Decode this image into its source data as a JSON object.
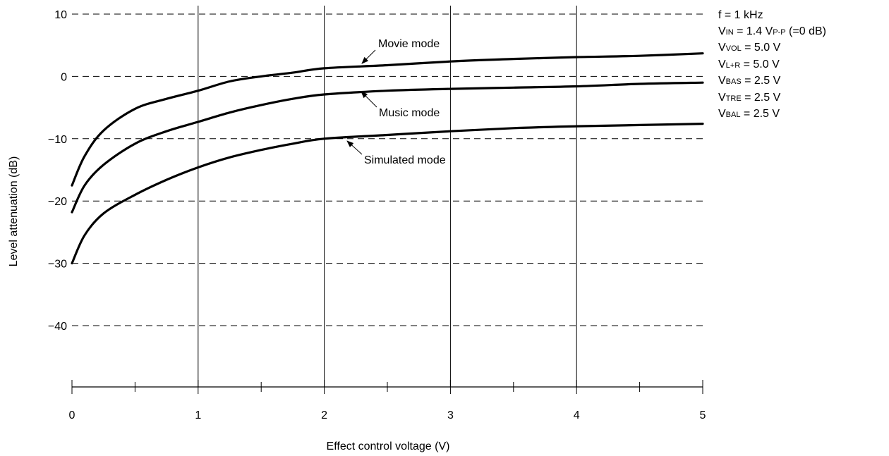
{
  "chart_data": {
    "type": "line",
    "xlabel": "Effect control voltage (V)",
    "ylabel": "Level attenuation (dB)",
    "xlim": [
      0,
      5
    ],
    "ylim": [
      -50,
      10
    ],
    "x_ticks": [
      "0",
      "1",
      "2",
      "3",
      "4",
      "5"
    ],
    "y_ticks": [
      "10",
      "0",
      "−10",
      "−20",
      "−30",
      "−40"
    ],
    "grid": {
      "x": "solid",
      "y": "dashed"
    },
    "series": [
      {
        "name": "Movie mode",
        "x": [
          0,
          0.1,
          0.25,
          0.5,
          0.75,
          1,
          1.25,
          1.5,
          1.75,
          2,
          2.5,
          3,
          3.5,
          4,
          4.5,
          5
        ],
        "y": [
          -17.5,
          -12.8,
          -8.7,
          -5.2,
          -3.6,
          -2.3,
          -0.8,
          0,
          0.6,
          1.3,
          1.8,
          2.4,
          2.8,
          3.1,
          3.3,
          3.7
        ]
      },
      {
        "name": "Music mode",
        "x": [
          0,
          0.1,
          0.25,
          0.5,
          0.75,
          1,
          1.25,
          1.5,
          1.75,
          2,
          2.5,
          3,
          3.5,
          4,
          4.5,
          5
        ],
        "y": [
          -21.8,
          -17.5,
          -14.2,
          -10.8,
          -8.8,
          -7.3,
          -5.8,
          -4.6,
          -3.6,
          -2.9,
          -2.3,
          -2.0,
          -1.8,
          -1.6,
          -1.2,
          -1.0
        ]
      },
      {
        "name": "Simulated mode",
        "x": [
          0,
          0.1,
          0.25,
          0.5,
          0.75,
          1,
          1.25,
          1.5,
          1.75,
          2,
          2.5,
          3,
          3.5,
          4,
          4.5,
          5
        ],
        "y": [
          -30,
          -25.5,
          -22.0,
          -19.0,
          -16.6,
          -14.6,
          -13.0,
          -11.8,
          -10.8,
          -10.0,
          -9.4,
          -8.8,
          -8.3,
          -8.0,
          -7.8,
          -7.6
        ]
      }
    ],
    "annotations": [
      {
        "text": "Movie mode",
        "series": "Movie mode"
      },
      {
        "text": "Music mode",
        "series": "Music mode"
      },
      {
        "text": "Simulated mode",
        "series": "Simulated mode"
      }
    ]
  },
  "conditions": [
    {
      "id": "f",
      "parts": [
        [
          "f = 1 kHz",
          false
        ]
      ]
    },
    {
      "id": "vin",
      "parts": [
        [
          "V",
          false
        ],
        [
          "IN",
          true
        ],
        [
          " = 1.4 V",
          false
        ],
        [
          "P-P",
          true
        ],
        [
          " (=0 dB)",
          false
        ]
      ]
    },
    {
      "id": "vvol",
      "parts": [
        [
          "V",
          false
        ],
        [
          "VOL",
          true
        ],
        [
          " = 5.0 V",
          false
        ]
      ]
    },
    {
      "id": "vlr",
      "parts": [
        [
          "V",
          false
        ],
        [
          "L+R",
          true
        ],
        [
          " = 5.0 V",
          false
        ]
      ]
    },
    {
      "id": "vbas",
      "parts": [
        [
          "V",
          false
        ],
        [
          "BAS",
          true
        ],
        [
          " = 2.5 V",
          false
        ]
      ]
    },
    {
      "id": "vtre",
      "parts": [
        [
          "V",
          false
        ],
        [
          "TRE",
          true
        ],
        [
          " = 2.5 V",
          false
        ]
      ]
    },
    {
      "id": "vbal",
      "parts": [
        [
          "V",
          false
        ],
        [
          "BAL",
          true
        ],
        [
          " = 2.5 V",
          false
        ]
      ]
    }
  ]
}
